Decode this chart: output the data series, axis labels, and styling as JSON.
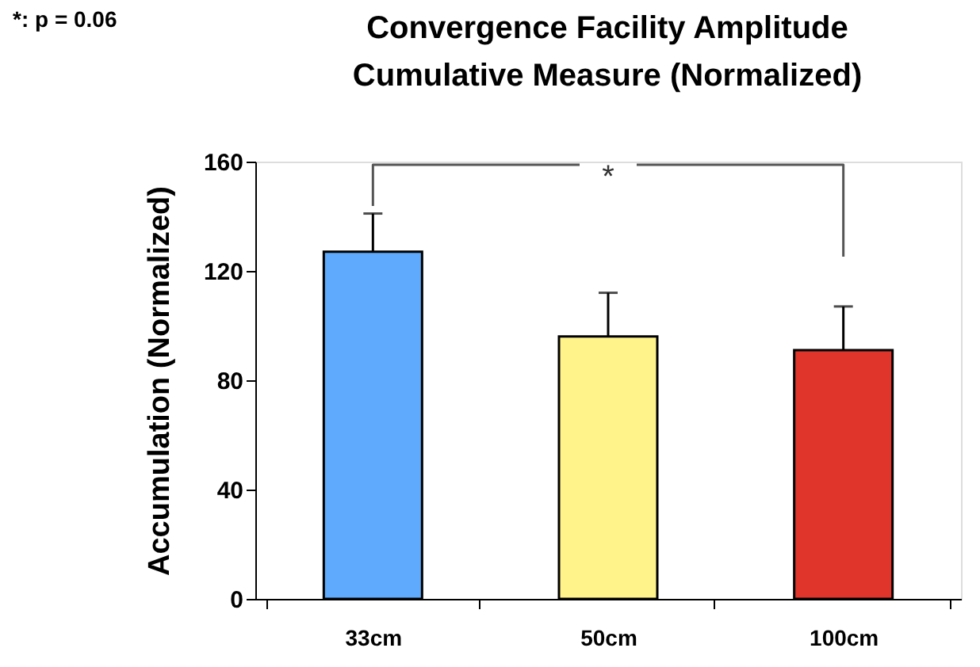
{
  "chart_data": {
    "type": "bar",
    "title": [
      "Convergence Facility Amplitude",
      "Cumulative Measure (Normalized)"
    ],
    "ylabel": "Accumulation (Normalized)",
    "categories": [
      "33cm",
      "50cm",
      "100cm"
    ],
    "values": [
      127,
      96,
      91
    ],
    "colors": [
      "#5faafc",
      "#fff38a",
      "#e0352b"
    ],
    "errors": [
      [
        127,
        141
      ],
      [
        96,
        112
      ],
      [
        91,
        107
      ]
    ],
    "ylim": [
      0,
      160
    ],
    "yticks": [
      0,
      40,
      80,
      120,
      160
    ],
    "grid": false,
    "legend": false,
    "annotations": [
      "*: p = 0.06",
      "*"
    ]
  }
}
